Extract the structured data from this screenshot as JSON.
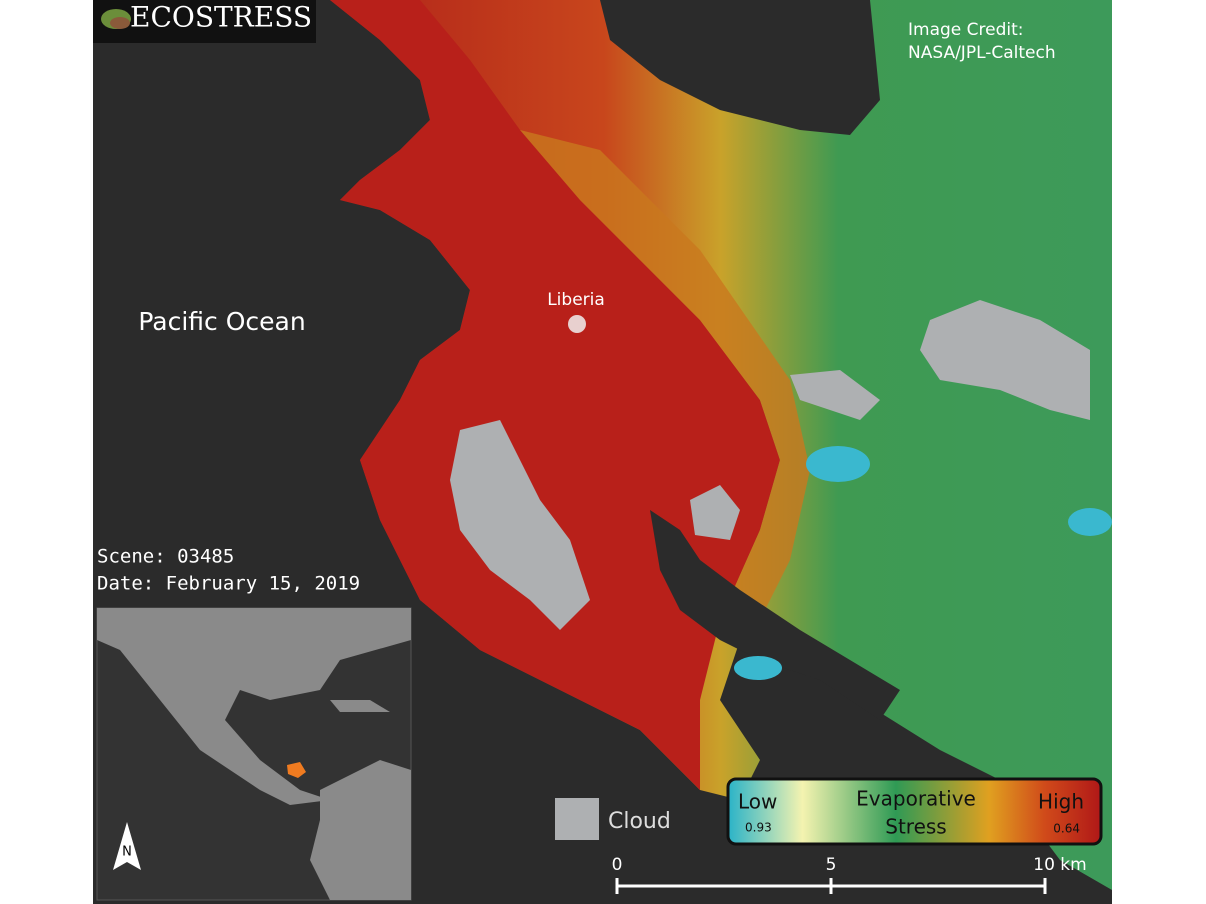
{
  "logo": {
    "text": "ECOSTRESS"
  },
  "credit": {
    "line1": "Image Credit:",
    "line2": "NASA/JPL-Caltech"
  },
  "labels": {
    "ocean": "Pacific Ocean",
    "city": "Liberia"
  },
  "scene": {
    "scene": "Scene: 03485",
    "date": "Date: February 15, 2019"
  },
  "legend": {
    "cloud": "Cloud",
    "low": "Low",
    "low_value": "0.93",
    "title_line1": "Evaporative",
    "title_line2": "Stress",
    "high": "High",
    "high_value": "0.64"
  },
  "scale_bar": {
    "ticks": [
      "0",
      "5",
      "10 km"
    ]
  },
  "north": "N"
}
